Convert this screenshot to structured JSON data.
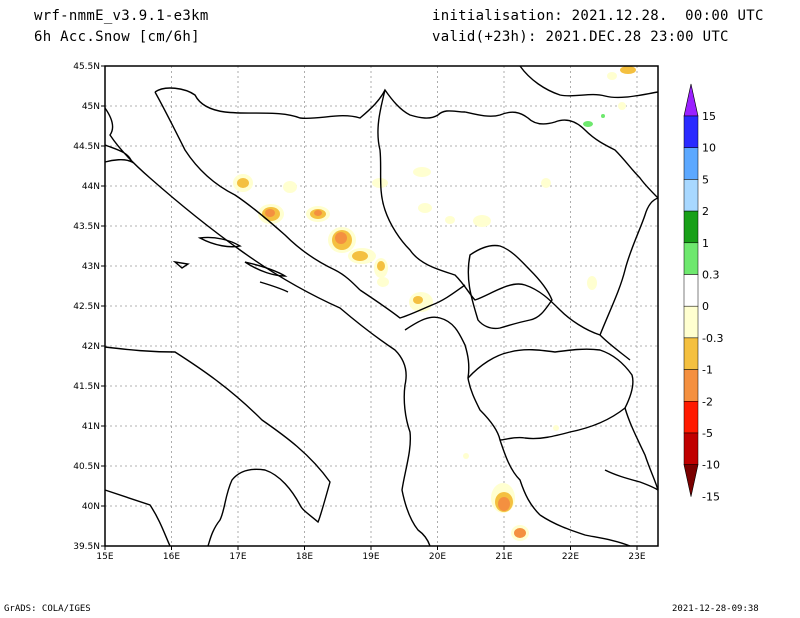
{
  "header": {
    "model": "wrf-nmmE_v3.9.1-e3km",
    "field": "6h Acc.Snow [cm/6h]",
    "init": "initialisation: 2021.12.28.  00:00 UTC",
    "valid": "valid(+23h): 2021.DEC.28 23:00 UTC"
  },
  "axes": {
    "lat_labels": [
      "45.5N",
      "45N",
      "44.5N",
      "44N",
      "43.5N",
      "43N",
      "42.5N",
      "42N",
      "41.5N",
      "41N",
      "40.5N",
      "40N",
      "39.5N"
    ],
    "lon_labels": [
      "15E",
      "16E",
      "17E",
      "18E",
      "19E",
      "20E",
      "21E",
      "22E",
      "23E"
    ]
  },
  "colorbar": {
    "labels": [
      "15",
      "10",
      "5",
      "2",
      "1",
      "0.3",
      "0",
      "-0.3",
      "-1",
      "-2",
      "-5",
      "-10",
      "-15"
    ],
    "colors": [
      "#8b00ff",
      "#2a2aff",
      "#5ca8ff",
      "#a8d8ff",
      "#18a018",
      "#6ee86e",
      "#ffffff",
      "#ffffd0",
      "#f4c040",
      "#f49040",
      "#ff1a00",
      "#c00000",
      "#800000"
    ],
    "top_cap_color": "#9a20ff",
    "bottom_cap_color": "#7a0000"
  },
  "footer": {
    "left": "GrADS: COLA/IGES",
    "right": "2021-12-28-09:38"
  }
}
